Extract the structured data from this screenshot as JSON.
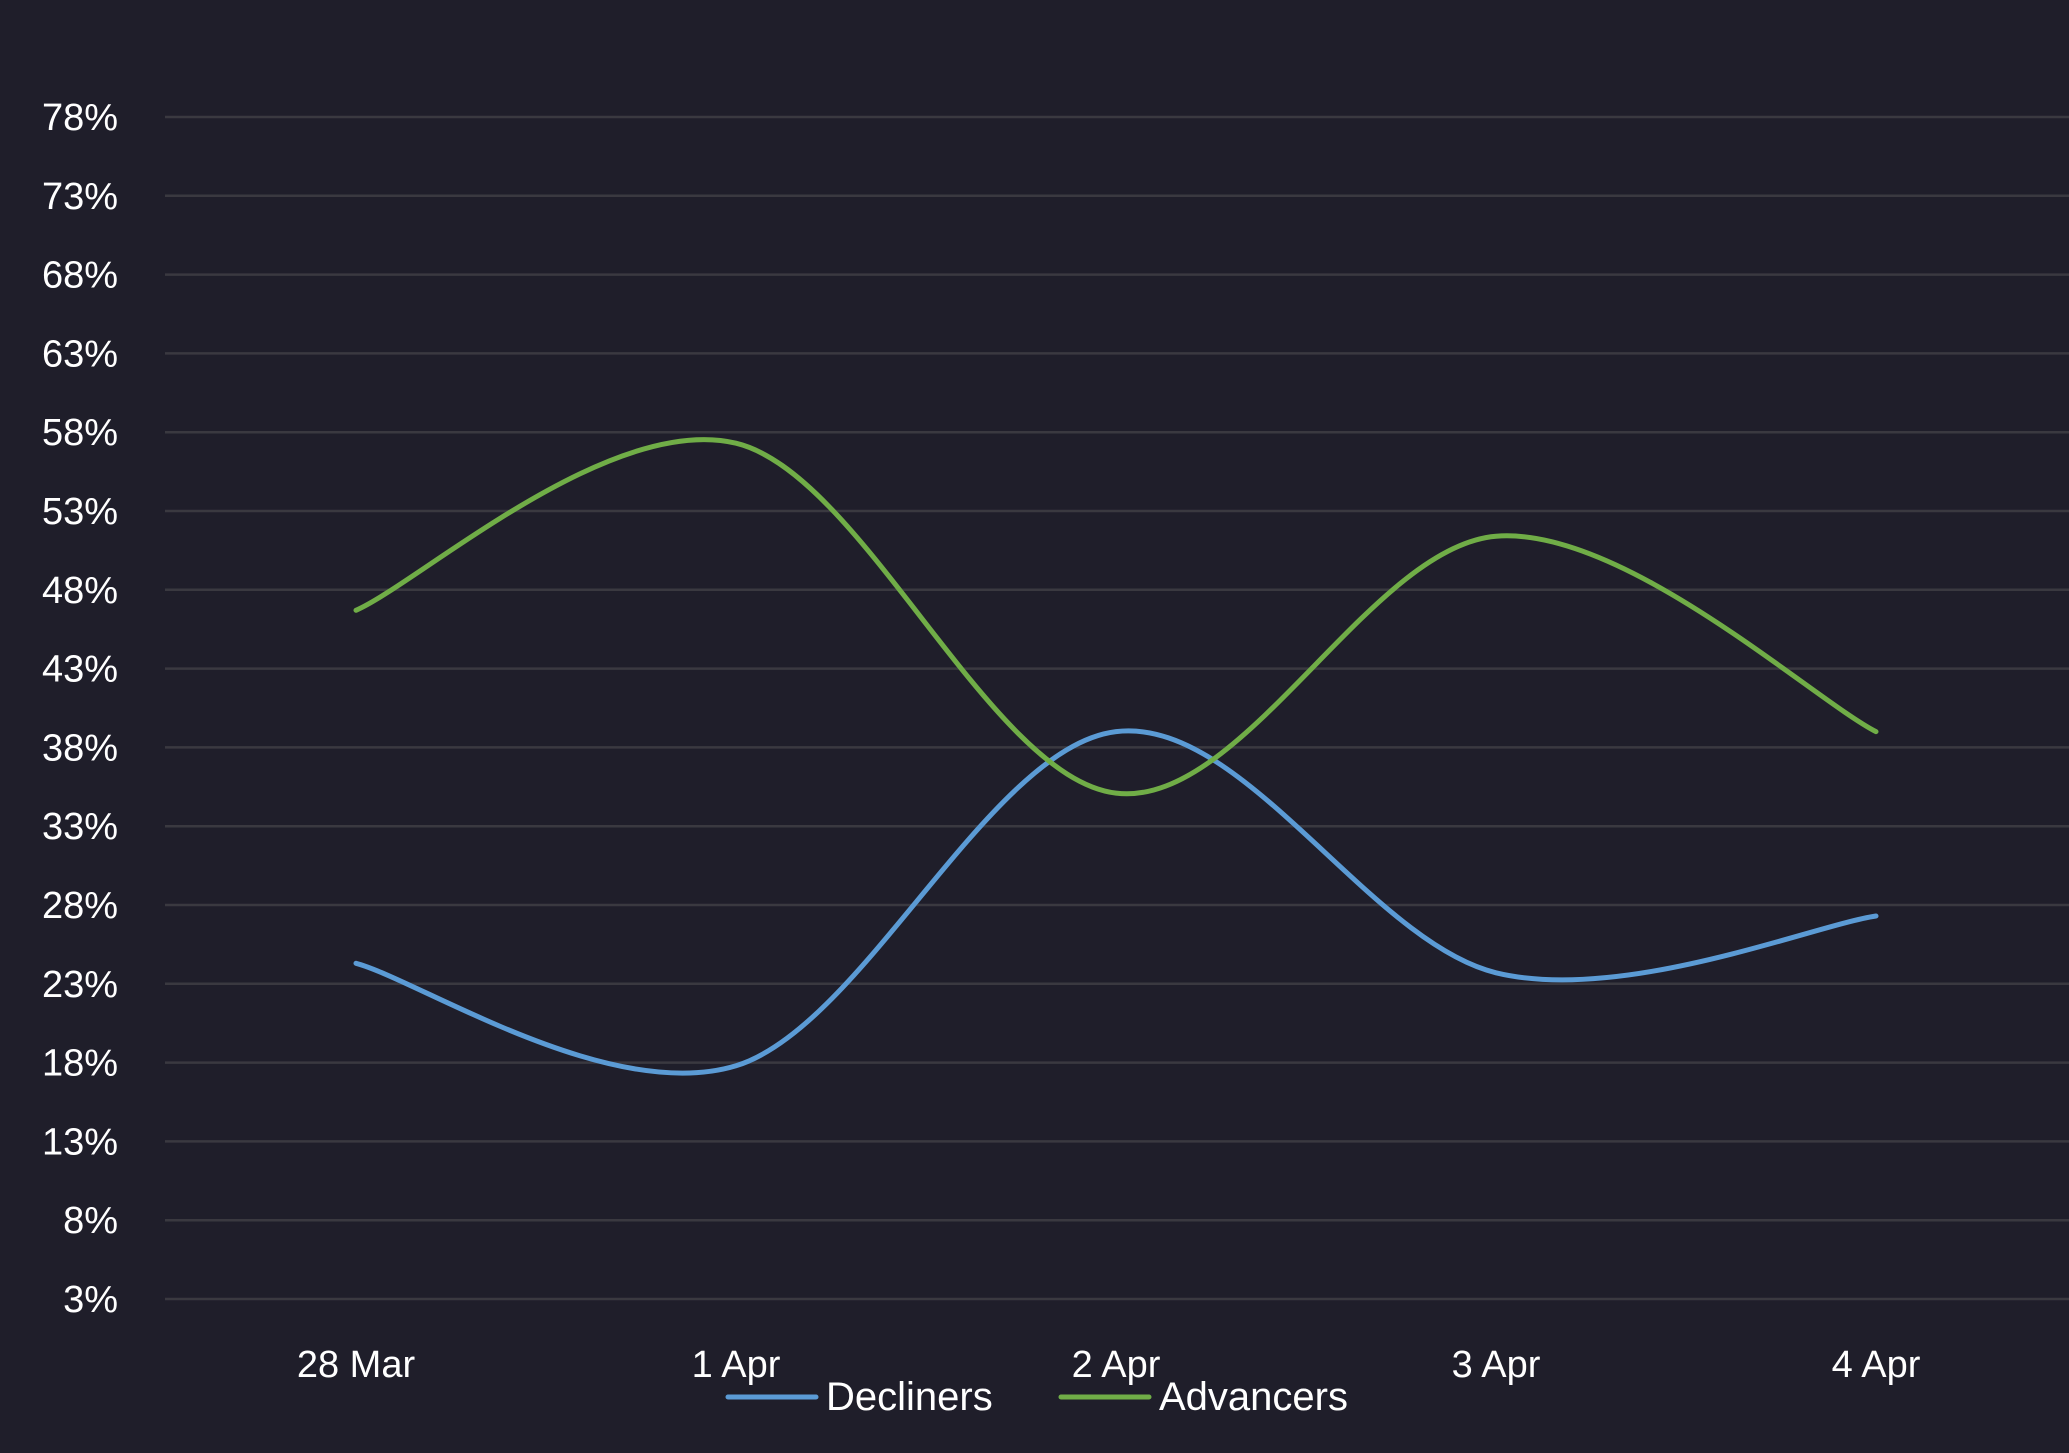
{
  "chart_data": {
    "type": "line",
    "title": "",
    "xlabel": "",
    "ylabel": "",
    "categories": [
      "28 Mar",
      "1 Apr",
      "2 Apr",
      "3 Apr",
      "4 Apr"
    ],
    "y_ticks": [
      "3%",
      "8%",
      "13%",
      "18%",
      "23%",
      "28%",
      "33%",
      "38%",
      "43%",
      "48%",
      "53%",
      "58%",
      "63%",
      "68%",
      "73%",
      "78%"
    ],
    "ylim": [
      3,
      78
    ],
    "y_unit": "%",
    "grid": true,
    "legend_position": "bottom-center",
    "smooth": true,
    "background_color": "#1f1e2a",
    "grid_color": "#3a3940",
    "series": [
      {
        "name": "Decliners",
        "color": "#5b9bd5",
        "values": [
          24.3,
          17.8,
          39.0,
          23.7,
          27.3
        ]
      },
      {
        "name": "Advancers",
        "color": "#70ad47",
        "values": [
          46.7,
          57.3,
          35.1,
          51.4,
          39.0
        ]
      }
    ]
  }
}
